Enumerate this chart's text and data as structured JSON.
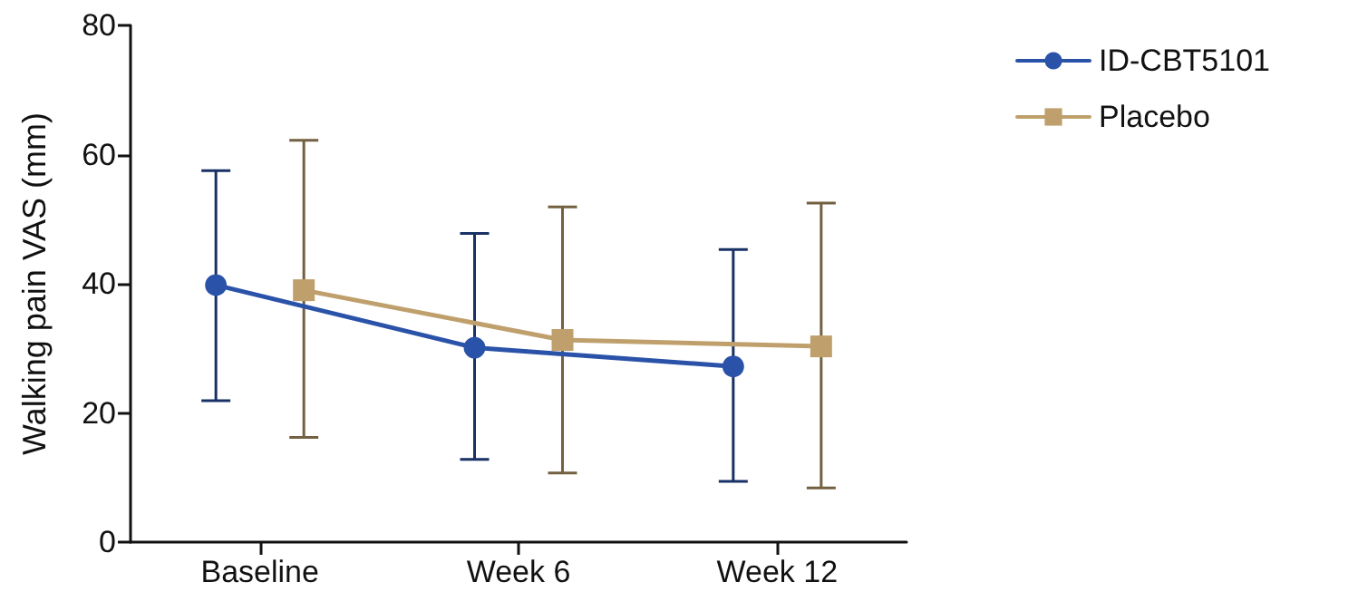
{
  "chart_data": {
    "type": "line",
    "ylabel": "Walking pain VAS (mm)",
    "categories": [
      "Baseline",
      "Week 6",
      "Week 12"
    ],
    "series": [
      {
        "name": "ID-CBT5101",
        "color": "#2a52a8",
        "marker": "circle",
        "values": [
          39.8,
          30.1,
          27.2
        ],
        "errors": [
          [
            21.9,
            57.5
          ],
          [
            12.8,
            47.8
          ],
          [
            9.4,
            45.3
          ]
        ]
      },
      {
        "name": "Placebo",
        "color": "#bfa06c",
        "marker": "square",
        "values": [
          39.0,
          31.3,
          30.3
        ],
        "errors": [
          [
            16.2,
            62.2
          ],
          [
            10.7,
            51.9
          ],
          [
            8.4,
            52.5
          ]
        ]
      }
    ],
    "ylim": [
      0,
      80
    ],
    "yticks": [
      0,
      20,
      40,
      60,
      80
    ],
    "grid": false,
    "legend": "top right",
    "line_style": "solid"
  }
}
